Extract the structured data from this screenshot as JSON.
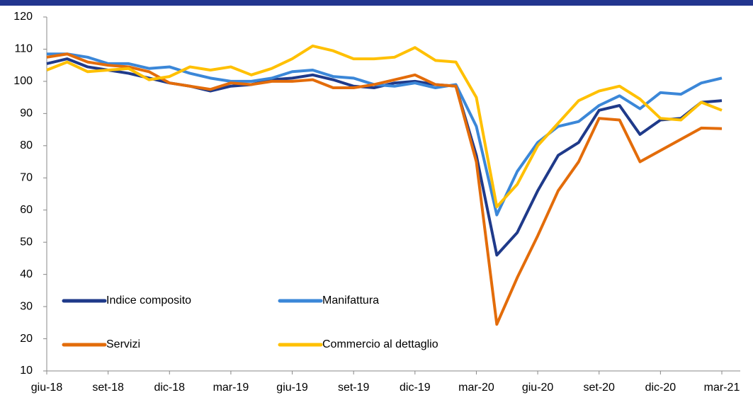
{
  "chart_data": {
    "type": "line",
    "categories": [
      "giu-18",
      null,
      null,
      "set-18",
      null,
      null,
      "dic-18",
      null,
      null,
      "mar-19",
      null,
      null,
      "giu-19",
      null,
      null,
      "set-19",
      null,
      null,
      "dic-19",
      null,
      null,
      "mar-20",
      null,
      null,
      "giu-20",
      null,
      null,
      "set-20",
      null,
      null,
      "dic-20",
      null,
      null,
      "mar-21"
    ],
    "series": [
      {
        "name": "Indice composito",
        "color": "#1f3a8a",
        "values": [
          105.5,
          107,
          104.5,
          103.5,
          102.5,
          101,
          99.5,
          98.5,
          97,
          98.5,
          99,
          100.5,
          101,
          102,
          100.5,
          98.5,
          98,
          99.5,
          100,
          99,
          98.5,
          77,
          46,
          53,
          66,
          77,
          81,
          91,
          92.5,
          83.5,
          88,
          88.5,
          93.5,
          94
        ]
      },
      {
        "name": "Manifattura",
        "color": "#3b87d8",
        "values": [
          108.5,
          108.5,
          107.5,
          105.5,
          105.5,
          104,
          104.5,
          102.5,
          101,
          100,
          100,
          101,
          103,
          103.5,
          101.5,
          101,
          99,
          98.5,
          99.5,
          98,
          99,
          86,
          58.5,
          72,
          81,
          86,
          87.5,
          92.5,
          95.5,
          91.5,
          96.5,
          96,
          99.5,
          101
        ]
      },
      {
        "name": "Servizi",
        "color": "#e36c0a",
        "values": [
          107.5,
          108.5,
          106,
          105,
          104.5,
          103,
          99.5,
          98.5,
          97.5,
          99.5,
          99,
          100,
          100,
          100.5,
          98,
          98,
          99,
          100.5,
          102,
          99,
          98.5,
          75,
          24.5,
          39,
          52,
          66,
          75,
          88.5,
          88,
          75,
          78.5,
          82,
          85.5,
          85.3
        ]
      },
      {
        "name": "Commercio al dettaglio",
        "color": "#ffc000",
        "values": [
          103.5,
          106,
          103,
          103.5,
          104,
          100.5,
          101.5,
          104.5,
          103.5,
          104.5,
          102,
          104,
          107,
          111,
          109.5,
          107,
          107,
          107.5,
          110.5,
          106.5,
          106,
          95,
          61,
          68,
          80,
          87,
          94,
          97,
          98.5,
          94.5,
          88.5,
          88,
          93.5,
          91
        ]
      }
    ],
    "ylim": [
      10,
      120
    ],
    "yticks": [
      10,
      20,
      30,
      40,
      50,
      60,
      70,
      80,
      90,
      100,
      110,
      120
    ]
  }
}
